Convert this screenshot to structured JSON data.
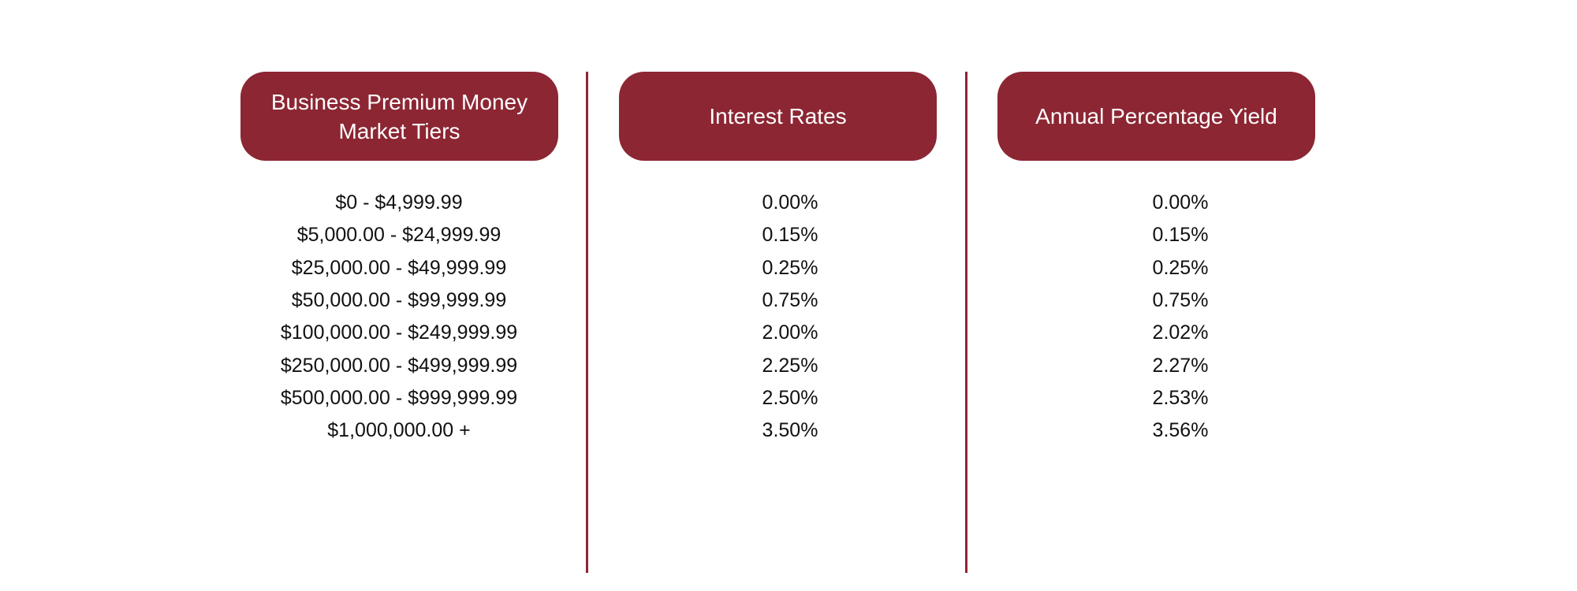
{
  "table": {
    "headers": [
      "Business Premium Money Market Tiers",
      "Interest Rates",
      "Annual Percentage Yield"
    ],
    "rows": [
      [
        "$0 - $4,999.99",
        "0.00%",
        "0.00%"
      ],
      [
        "$5,000.00 - $24,999.99",
        "0.15%",
        "0.15%"
      ],
      [
        "$25,000.00 - $49,999.99",
        "0.25%",
        "0.25%"
      ],
      [
        "$50,000.00 - $99,999.99",
        "0.75%",
        "0.75%"
      ],
      [
        "$100,000.00 - $249,999.99",
        "2.00%",
        "2.02%"
      ],
      [
        "$250,000.00 - $499,999.99",
        "2.25%",
        "2.27%"
      ],
      [
        "$500,000.00 - $999,999.99",
        "2.50%",
        "2.53%"
      ],
      [
        "$1,000,000.00 +",
        "3.50%",
        "3.56%"
      ]
    ]
  }
}
